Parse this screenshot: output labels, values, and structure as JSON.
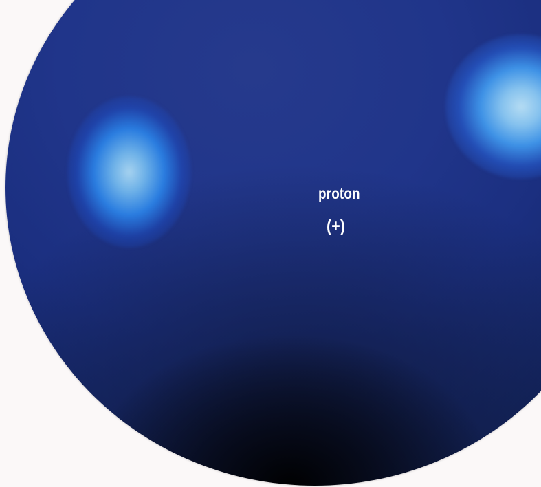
{
  "particle": {
    "name": "proton",
    "charge": "(+)"
  },
  "colors": {
    "background": "#fbf8f8",
    "sphere_blue": "#20358a",
    "sphere_shadow": "#050814",
    "glow": "#a6d2ef",
    "label_text": "#ffffff"
  }
}
